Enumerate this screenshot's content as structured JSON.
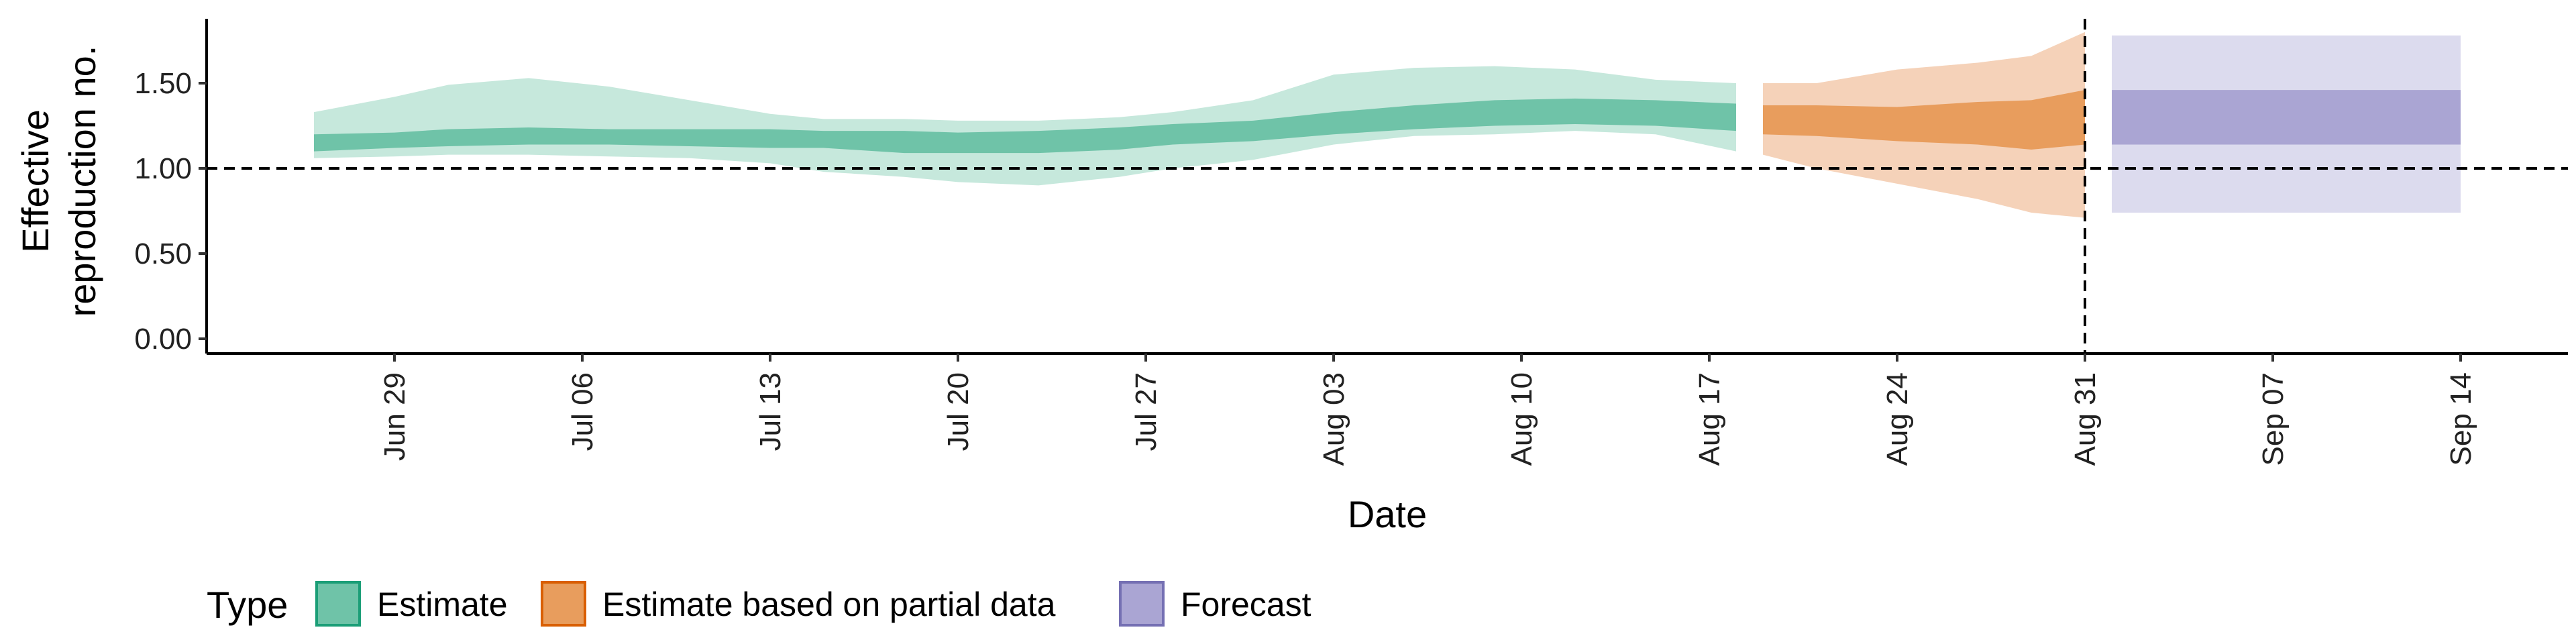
{
  "chart_data": {
    "type": "area",
    "title": "",
    "xlabel": "Date",
    "ylabel_lines": [
      "Effective",
      "reproduction no."
    ],
    "ylim": [
      0,
      1.85
    ],
    "yticks": [
      0.0,
      0.5,
      1.0,
      1.5
    ],
    "ytick_labels": [
      "0.00",
      "0.50",
      "1.00",
      "1.50"
    ],
    "x_range": [
      "2020-06-22",
      "2020-09-18"
    ],
    "xticks": [
      "2020-06-29",
      "2020-07-06",
      "2020-07-13",
      "2020-07-20",
      "2020-07-27",
      "2020-08-03",
      "2020-08-10",
      "2020-08-17",
      "2020-08-24",
      "2020-08-31",
      "2020-09-07",
      "2020-09-14"
    ],
    "xtick_labels": [
      "Jun 29",
      "Jul 06",
      "Jul 13",
      "Jul 20",
      "Jul 27",
      "Aug 03",
      "Aug 10",
      "Aug 17",
      "Aug 24",
      "Aug 31",
      "Sep 07",
      "Sep 14"
    ],
    "reference_line_y": 1.0,
    "reference_line_x": "2020-08-31",
    "grid": false,
    "legend": {
      "title": "Type",
      "position": "bottom-left",
      "entries": [
        {
          "label": "Estimate",
          "fill": "#6fc3a8",
          "stroke": "#1b9e77"
        },
        {
          "label": "Estimate based on partial data",
          "fill": "#e89d5d",
          "stroke": "#d95f02"
        },
        {
          "label": "Forecast",
          "fill": "#aaa5d3",
          "stroke": "#7570b3"
        }
      ]
    },
    "series": [
      {
        "name": "Estimate",
        "color_outer": "#c6e8dc",
        "color_inner": "#6fc3a8",
        "points": [
          [
            "2020-06-26",
            1.33,
            1.06,
            1.2,
            1.1
          ],
          [
            "2020-06-29",
            1.42,
            1.07,
            1.21,
            1.12
          ],
          [
            "2020-07-01",
            1.49,
            1.08,
            1.23,
            1.13
          ],
          [
            "2020-07-04",
            1.53,
            1.08,
            1.24,
            1.14
          ],
          [
            "2020-07-07",
            1.48,
            1.07,
            1.23,
            1.14
          ],
          [
            "2020-07-10",
            1.4,
            1.06,
            1.23,
            1.13
          ],
          [
            "2020-07-13",
            1.32,
            1.03,
            1.23,
            1.12
          ],
          [
            "2020-07-15",
            1.29,
            0.98,
            1.22,
            1.12
          ],
          [
            "2020-07-18",
            1.29,
            0.95,
            1.22,
            1.09
          ],
          [
            "2020-07-20",
            1.28,
            0.92,
            1.21,
            1.09
          ],
          [
            "2020-07-23",
            1.28,
            0.9,
            1.22,
            1.09
          ],
          [
            "2020-07-26",
            1.3,
            0.95,
            1.24,
            1.11
          ],
          [
            "2020-07-28",
            1.33,
            1.0,
            1.26,
            1.14
          ],
          [
            "2020-07-31",
            1.4,
            1.05,
            1.28,
            1.16
          ],
          [
            "2020-08-03",
            1.55,
            1.14,
            1.33,
            1.2
          ],
          [
            "2020-08-06",
            1.59,
            1.19,
            1.37,
            1.23
          ],
          [
            "2020-08-09",
            1.6,
            1.2,
            1.4,
            1.25
          ],
          [
            "2020-08-12",
            1.58,
            1.22,
            1.41,
            1.26
          ],
          [
            "2020-08-15",
            1.52,
            1.2,
            1.4,
            1.25
          ],
          [
            "2020-08-18",
            1.5,
            1.1,
            1.38,
            1.22
          ]
        ]
      },
      {
        "name": "Estimate based on partial data",
        "color_outer": "#f5d2b9",
        "color_inner": "#e89d5d",
        "points": [
          [
            "2020-08-19",
            1.5,
            1.08,
            1.37,
            1.2
          ],
          [
            "2020-08-21",
            1.5,
            1.0,
            1.37,
            1.19
          ],
          [
            "2020-08-24",
            1.58,
            0.91,
            1.36,
            1.16
          ],
          [
            "2020-08-27",
            1.62,
            0.82,
            1.39,
            1.14
          ],
          [
            "2020-08-29",
            1.66,
            0.74,
            1.4,
            1.11
          ],
          [
            "2020-08-31",
            1.8,
            0.71,
            1.46,
            1.14
          ]
        ]
      },
      {
        "name": "Forecast",
        "color_outer": "#dcdbee",
        "color_inner": "#aaa5d3",
        "points": [
          [
            "2020-09-01",
            1.78,
            0.74,
            1.46,
            1.14
          ],
          [
            "2020-09-14",
            1.78,
            0.74,
            1.46,
            1.14
          ]
        ]
      }
    ]
  }
}
